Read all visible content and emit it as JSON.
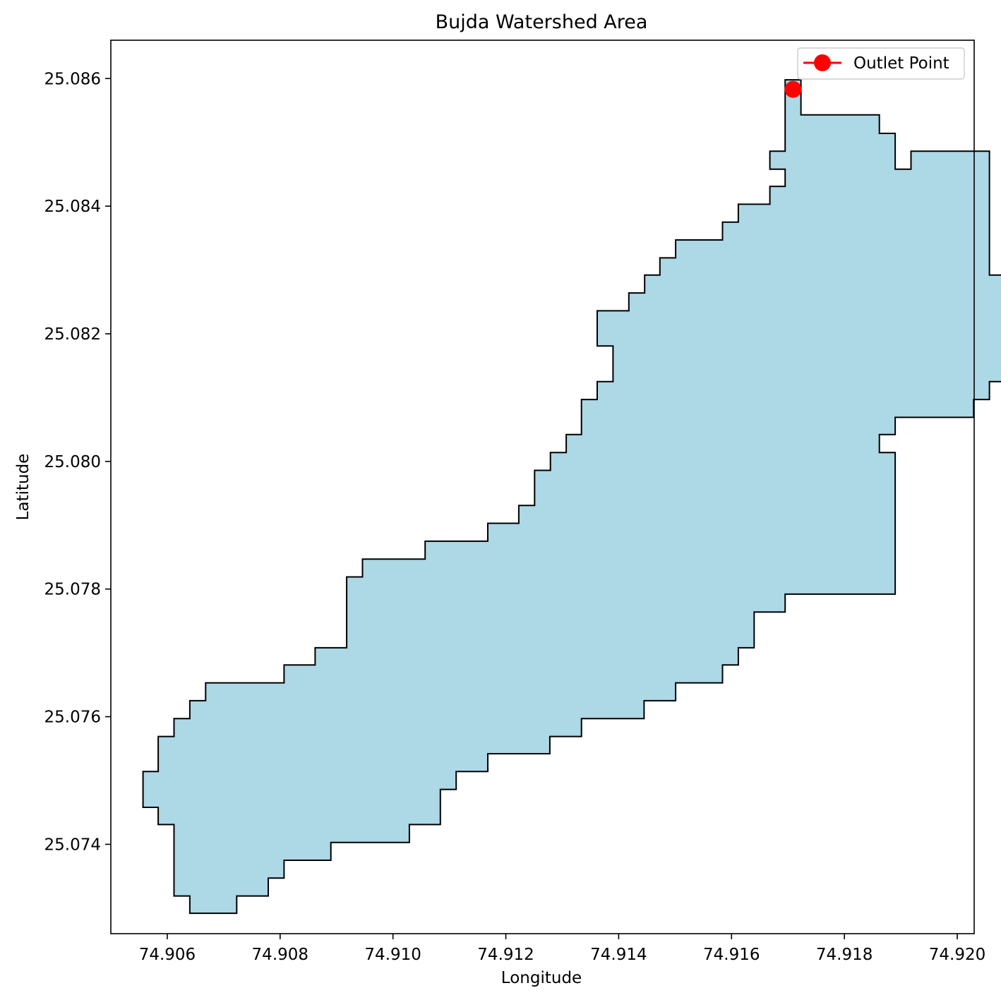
{
  "chart_data": {
    "type": "map",
    "title": "Bujda Watershed Area",
    "xlabel": "Longitude",
    "ylabel": "Latitude",
    "xlim": [
      74.905,
      74.9203
    ],
    "ylim": [
      25.0726,
      25.0866
    ],
    "xticks": [
      74.906,
      74.908,
      74.91,
      74.912,
      74.914,
      74.916,
      74.918,
      74.92
    ],
    "xtick_labels": [
      "74.906",
      "74.908",
      "74.910",
      "74.912",
      "74.914",
      "74.916",
      "74.918",
      "74.920"
    ],
    "yticks": [
      25.074,
      25.076,
      25.078,
      25.08,
      25.082,
      25.084,
      25.086
    ],
    "ytick_labels": [
      "25.074",
      "25.076",
      "25.078",
      "25.080",
      "25.082",
      "25.084",
      "25.086"
    ],
    "grid": false,
    "legend": {
      "placement": "top-right",
      "entries": [
        {
          "label": "Outlet Point",
          "color": "#ff0000"
        }
      ]
    },
    "watershed": {
      "fill_color": "#add8e6",
      "edge_color": "#000000",
      "polygon": [
        [
          74.91695,
          25.08598
        ],
        [
          74.91723,
          25.08598
        ],
        [
          74.91723,
          25.08543
        ],
        [
          74.91862,
          25.08543
        ],
        [
          74.91862,
          25.08514
        ],
        [
          74.9189,
          25.08514
        ],
        [
          74.9189,
          25.08458
        ],
        [
          74.91918,
          25.08458
        ],
        [
          74.91918,
          25.08486
        ],
        [
          74.92057,
          25.08486
        ],
        [
          74.92057,
          25.08292
        ],
        [
          74.92085,
          25.08292
        ],
        [
          74.92085,
          25.08125
        ],
        [
          74.92057,
          25.08125
        ],
        [
          74.92057,
          25.08097
        ],
        [
          74.92029,
          25.08097
        ],
        [
          74.92029,
          25.08069
        ],
        [
          74.9189,
          25.08069
        ],
        [
          74.9189,
          25.08042
        ],
        [
          74.91862,
          25.08042
        ],
        [
          74.91862,
          25.08014
        ],
        [
          74.9189,
          25.08014
        ],
        [
          74.9189,
          25.07792
        ],
        [
          74.91695,
          25.07792
        ],
        [
          74.91695,
          25.07764
        ],
        [
          74.9164,
          25.07764
        ],
        [
          74.9164,
          25.07708
        ],
        [
          74.91612,
          25.07708
        ],
        [
          74.91612,
          25.07681
        ],
        [
          74.91584,
          25.07681
        ],
        [
          74.91584,
          25.07653
        ],
        [
          74.91501,
          25.07653
        ],
        [
          74.91501,
          25.07625
        ],
        [
          74.91445,
          25.07625
        ],
        [
          74.91445,
          25.07597
        ],
        [
          74.91334,
          25.07597
        ],
        [
          74.91334,
          25.07569
        ],
        [
          74.91278,
          25.07569
        ],
        [
          74.91278,
          25.07542
        ],
        [
          74.91168,
          25.07542
        ],
        [
          74.91168,
          25.07514
        ],
        [
          74.91112,
          25.07514
        ],
        [
          74.91112,
          25.07486
        ],
        [
          74.91084,
          25.07486
        ],
        [
          74.91084,
          25.07431
        ],
        [
          74.91029,
          25.07431
        ],
        [
          74.91029,
          25.07403
        ],
        [
          74.9089,
          25.07403
        ],
        [
          74.9089,
          25.07375
        ],
        [
          74.90807,
          25.07375
        ],
        [
          74.90807,
          25.07347
        ],
        [
          74.90779,
          25.07347
        ],
        [
          74.90779,
          25.07319
        ],
        [
          74.90723,
          25.07319
        ],
        [
          74.90723,
          25.07292
        ],
        [
          74.9064,
          25.07292
        ],
        [
          74.9064,
          25.07319
        ],
        [
          74.90612,
          25.07319
        ],
        [
          74.90612,
          25.07431
        ],
        [
          74.90584,
          25.07431
        ],
        [
          74.90584,
          25.07458
        ],
        [
          74.90557,
          25.07458
        ],
        [
          74.90557,
          25.07514
        ],
        [
          74.90584,
          25.07514
        ],
        [
          74.90584,
          25.07569
        ],
        [
          74.90612,
          25.07569
        ],
        [
          74.90612,
          25.07597
        ],
        [
          74.9064,
          25.07597
        ],
        [
          74.9064,
          25.07625
        ],
        [
          74.90668,
          25.07625
        ],
        [
          74.90668,
          25.07653
        ],
        [
          74.90807,
          25.07653
        ],
        [
          74.90807,
          25.07681
        ],
        [
          74.90862,
          25.07681
        ],
        [
          74.90862,
          25.07708
        ],
        [
          74.90918,
          25.07708
        ],
        [
          74.90918,
          25.07819
        ],
        [
          74.90946,
          25.07819
        ],
        [
          74.90946,
          25.07847
        ],
        [
          74.91057,
          25.07847
        ],
        [
          74.91057,
          25.07875
        ],
        [
          74.91168,
          25.07875
        ],
        [
          74.91168,
          25.07903
        ],
        [
          74.91223,
          25.07903
        ],
        [
          74.91223,
          25.07931
        ],
        [
          74.91251,
          25.07931
        ],
        [
          74.91251,
          25.07986
        ],
        [
          74.91279,
          25.07986
        ],
        [
          74.91279,
          25.08014
        ],
        [
          74.91307,
          25.08014
        ],
        [
          74.91307,
          25.08042
        ],
        [
          74.91334,
          25.08042
        ],
        [
          74.91334,
          25.08097
        ],
        [
          74.91362,
          25.08097
        ],
        [
          74.91362,
          25.08125
        ],
        [
          74.9139,
          25.08125
        ],
        [
          74.9139,
          25.08181
        ],
        [
          74.91362,
          25.08181
        ],
        [
          74.91362,
          25.08236
        ],
        [
          74.91418,
          25.08236
        ],
        [
          74.91418,
          25.08264
        ],
        [
          74.91446,
          25.08264
        ],
        [
          74.91446,
          25.08292
        ],
        [
          74.91473,
          25.08292
        ],
        [
          74.91473,
          25.08319
        ],
        [
          74.91501,
          25.08319
        ],
        [
          74.91501,
          25.08347
        ],
        [
          74.91584,
          25.08347
        ],
        [
          74.91584,
          25.08375
        ],
        [
          74.91612,
          25.08375
        ],
        [
          74.91612,
          25.08403
        ],
        [
          74.91668,
          25.08403
        ],
        [
          74.91668,
          25.08431
        ],
        [
          74.91695,
          25.08431
        ],
        [
          74.91695,
          25.08458
        ],
        [
          74.91668,
          25.08458
        ],
        [
          74.91668,
          25.08486
        ],
        [
          74.91695,
          25.08486
        ]
      ]
    },
    "outlet_point": {
      "label": "Outlet Point",
      "lon": 74.91709,
      "lat": 25.08583,
      "color": "#ff0000"
    }
  }
}
